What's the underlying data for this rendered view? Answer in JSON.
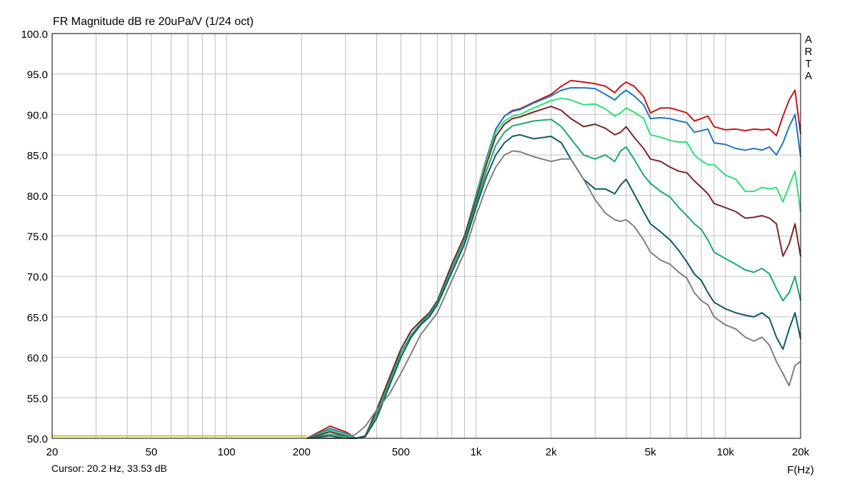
{
  "title": "FR Magnitude dB re 20uPa/V (1/24 oct)",
  "cursor_readout": "Cursor: 20.2 Hz, 33.53 dB",
  "watermark": [
    "A",
    "R",
    "T",
    "A"
  ],
  "colors": {
    "background": "#ffffff",
    "grid": "#c0c0c0",
    "frame": "#000000"
  },
  "chart_data": {
    "type": "line",
    "title": "FR Magnitude dB re 20uPa/V (1/24 oct)",
    "xlabel": "F(Hz)",
    "ylabel": "",
    "xscale": "log",
    "xlim": [
      20,
      20000
    ],
    "ylim": [
      50,
      100
    ],
    "grid": true,
    "x_ticks": [
      {
        "value": 20,
        "label": "20"
      },
      {
        "value": 50,
        "label": "50"
      },
      {
        "value": 100,
        "label": "100"
      },
      {
        "value": 200,
        "label": "200"
      },
      {
        "value": 500,
        "label": "500"
      },
      {
        "value": 1000,
        "label": "1k"
      },
      {
        "value": 2000,
        "label": "2k"
      },
      {
        "value": 5000,
        "label": "5k"
      },
      {
        "value": 10000,
        "label": "10k"
      },
      {
        "value": 20000,
        "label": "20k"
      }
    ],
    "y_ticks": [
      {
        "value": 100,
        "label": "100.0"
      },
      {
        "value": 95,
        "label": "95.0"
      },
      {
        "value": 90,
        "label": "90.0"
      },
      {
        "value": 85,
        "label": "85.0"
      },
      {
        "value": 80,
        "label": "80.0"
      },
      {
        "value": 75,
        "label": "75.0"
      },
      {
        "value": 70,
        "label": "70.0"
      },
      {
        "value": 65,
        "label": "65.0"
      },
      {
        "value": 60,
        "label": "60.0"
      },
      {
        "value": 55,
        "label": "55.0"
      },
      {
        "value": 50,
        "label": "50.0"
      }
    ],
    "series": [
      {
        "color": "#c01818",
        "x": [
          210,
          260,
          300,
          330,
          360,
          400,
          450,
          500,
          550,
          600,
          650,
          700,
          800,
          900,
          1000,
          1100,
          1200,
          1300,
          1400,
          1500,
          1700,
          2000,
          2200,
          2400,
          2700,
          3000,
          3300,
          3600,
          3800,
          4000,
          4300,
          4700,
          5000,
          5500,
          6000,
          6500,
          7000,
          7500,
          8000,
          8500,
          9000,
          10000,
          11000,
          12000,
          13000,
          14000,
          15000,
          16000,
          17000,
          18000,
          19000,
          20000
        ],
        "y": [
          50,
          51.5,
          50.8,
          50,
          50.3,
          53.5,
          57.5,
          61,
          63.3,
          64.5,
          65.5,
          67,
          71.5,
          75,
          80,
          84.5,
          88.2,
          89.8,
          90.5,
          90.7,
          91.5,
          92.5,
          93.5,
          94.2,
          94,
          93.8,
          93.5,
          92.7,
          93.5,
          94,
          93.5,
          92.2,
          90.2,
          90.8,
          90.8,
          90.5,
          90.2,
          89.2,
          89.5,
          89.8,
          88.5,
          88.1,
          88.2,
          88,
          88.2,
          88.1,
          88.2,
          87.4,
          89.8,
          91.8,
          93,
          87.6
        ]
      },
      {
        "color": "#1e78c4",
        "x": [
          210,
          260,
          300,
          330,
          360,
          400,
          450,
          500,
          550,
          600,
          650,
          700,
          800,
          900,
          1000,
          1100,
          1200,
          1300,
          1400,
          1500,
          1700,
          2000,
          2200,
          2400,
          2700,
          3000,
          3300,
          3600,
          3800,
          4000,
          4300,
          4700,
          5000,
          5500,
          6000,
          6500,
          7000,
          7500,
          8000,
          8500,
          9000,
          10000,
          11000,
          12000,
          13000,
          14000,
          15000,
          16000,
          17000,
          18000,
          19000,
          20000
        ],
        "y": [
          50,
          51.2,
          50.6,
          50,
          50.3,
          53.5,
          57.5,
          61,
          63.3,
          64.5,
          65.5,
          67,
          71.5,
          75,
          80,
          84.5,
          88.2,
          89.8,
          90.4,
          90.6,
          91.4,
          92.3,
          93,
          93.3,
          93.3,
          93.2,
          92.5,
          91.8,
          92.5,
          93,
          92.3,
          91.2,
          89.5,
          89.6,
          89.5,
          89.2,
          89,
          87.8,
          88,
          88.2,
          86.5,
          86.3,
          85.8,
          85.6,
          85.8,
          85.6,
          86,
          85,
          86.5,
          88.5,
          90,
          84.8
        ]
      },
      {
        "color": "#2ee078",
        "x": [
          210,
          260,
          300,
          330,
          360,
          400,
          450,
          500,
          550,
          600,
          650,
          700,
          800,
          900,
          1000,
          1100,
          1200,
          1300,
          1400,
          1500,
          1700,
          2000,
          2200,
          2400,
          2700,
          3000,
          3300,
          3600,
          3800,
          4000,
          4300,
          4700,
          5000,
          5500,
          6000,
          6500,
          7000,
          7500,
          8000,
          8500,
          9000,
          10000,
          11000,
          12000,
          13000,
          14000,
          15000,
          16000,
          17000,
          18000,
          19000,
          20000
        ],
        "y": [
          50,
          51,
          50.5,
          50,
          50.3,
          53.5,
          57.5,
          61,
          63.3,
          64.5,
          65.5,
          67,
          71.5,
          75,
          79.8,
          84.2,
          87.8,
          89.2,
          89.8,
          90,
          90.8,
          91.7,
          92,
          91.8,
          91.2,
          91.3,
          90.7,
          89.8,
          90.2,
          90.8,
          90.3,
          89.5,
          87.5,
          87.2,
          86.8,
          86.6,
          86.6,
          85,
          84.3,
          83.8,
          83.8,
          82.5,
          82,
          80.5,
          80.5,
          81,
          80.8,
          81,
          79.2,
          81.2,
          83,
          78
        ]
      },
      {
        "color": "#7a2828",
        "x": [
          210,
          260,
          300,
          330,
          360,
          400,
          450,
          500,
          550,
          600,
          650,
          700,
          800,
          900,
          1000,
          1100,
          1200,
          1300,
          1400,
          1500,
          1700,
          2000,
          2200,
          2400,
          2700,
          3000,
          3300,
          3600,
          3800,
          4000,
          4300,
          4700,
          5000,
          5500,
          6000,
          6500,
          7000,
          7500,
          8000,
          8500,
          9000,
          10000,
          11000,
          12000,
          13000,
          14000,
          15000,
          16000,
          17000,
          18000,
          19000,
          20000
        ],
        "y": [
          50,
          50.8,
          50.3,
          50,
          50.3,
          53.5,
          57.5,
          61,
          63.3,
          64.5,
          65.5,
          67,
          71.5,
          75,
          79.5,
          83.8,
          87.3,
          88.8,
          89.5,
          89.7,
          90.3,
          91,
          90.5,
          89.5,
          88.5,
          88.8,
          88.3,
          87.5,
          87.8,
          88.5,
          87.2,
          85.8,
          84.5,
          84.2,
          83.5,
          83,
          82.8,
          81.8,
          81,
          80.2,
          79,
          78.5,
          78,
          77.2,
          77.3,
          77.5,
          77.2,
          76.5,
          72.5,
          74,
          76.5,
          72.5
        ]
      },
      {
        "color": "#1ea86e",
        "x": [
          210,
          260,
          300,
          330,
          360,
          400,
          450,
          500,
          550,
          600,
          650,
          700,
          800,
          900,
          1000,
          1100,
          1200,
          1300,
          1400,
          1500,
          1700,
          2000,
          2200,
          2400,
          2700,
          3000,
          3300,
          3600,
          3800,
          4000,
          4300,
          4700,
          5000,
          5500,
          6000,
          6500,
          7000,
          7500,
          8000,
          8500,
          9000,
          10000,
          11000,
          12000,
          13000,
          14000,
          15000,
          16000,
          17000,
          18000,
          19000,
          20000
        ],
        "y": [
          50,
          50.5,
          50.2,
          50,
          50.2,
          53,
          57,
          60.5,
          62.8,
          64.2,
          65.3,
          66.8,
          71,
          74.5,
          79,
          83,
          86.2,
          87.8,
          88.6,
          88.8,
          89.2,
          89.4,
          88.5,
          87,
          85,
          84.5,
          85,
          84.2,
          85.5,
          86,
          84.5,
          82.5,
          81.5,
          80.5,
          79.8,
          78.5,
          77.5,
          76.5,
          75.8,
          74.5,
          73,
          72.2,
          71.5,
          70.8,
          70.5,
          71,
          70.3,
          68.5,
          67,
          68,
          70,
          67
        ]
      },
      {
        "color": "#0f5a64",
        "x": [
          210,
          260,
          300,
          330,
          360,
          400,
          450,
          500,
          550,
          600,
          650,
          700,
          800,
          900,
          1000,
          1100,
          1200,
          1300,
          1400,
          1500,
          1700,
          2000,
          2200,
          2400,
          2700,
          3000,
          3300,
          3600,
          3800,
          4000,
          4300,
          4700,
          5000,
          5500,
          6000,
          6500,
          7000,
          7500,
          8000,
          8500,
          9000,
          10000,
          11000,
          12000,
          13000,
          14000,
          15000,
          16000,
          17000,
          18000,
          19000,
          20000
        ],
        "y": [
          50,
          50.3,
          50,
          50,
          50.2,
          52.5,
          56.5,
          60,
          62.5,
          64,
          65,
          66.5,
          70.5,
          74,
          78.5,
          82.3,
          85,
          86.5,
          87.3,
          87.5,
          87,
          87.3,
          86.5,
          84.5,
          82,
          80.8,
          80.8,
          80.2,
          81.3,
          82,
          80.2,
          78,
          76.5,
          75.5,
          74.5,
          73.2,
          71.8,
          70.3,
          69.5,
          68,
          66.8,
          66,
          65.5,
          65.2,
          65,
          65.5,
          64.8,
          62.5,
          61,
          63.5,
          65.5,
          62.3
        ]
      },
      {
        "color": "#808080",
        "x": [
          210,
          260,
          300,
          330,
          360,
          400,
          450,
          500,
          550,
          600,
          650,
          700,
          800,
          900,
          1000,
          1100,
          1200,
          1300,
          1400,
          1500,
          1700,
          2000,
          2200,
          2400,
          2700,
          3000,
          3300,
          3600,
          3800,
          4000,
          4300,
          4700,
          5000,
          5500,
          6000,
          6500,
          7000,
          7500,
          8000,
          8500,
          9000,
          10000,
          11000,
          12000,
          13000,
          14000,
          15000,
          16000,
          17000,
          18000,
          19000,
          20000
        ],
        "y": [
          50,
          50,
          50,
          50.5,
          51.5,
          53.5,
          55.5,
          58,
          60.5,
          62.8,
          64.2,
          65.5,
          69.5,
          73,
          77.5,
          81,
          83.5,
          85,
          85.5,
          85.4,
          84.8,
          84.2,
          84.5,
          84.5,
          82,
          79.5,
          77.8,
          77,
          76.8,
          77,
          76.2,
          74.5,
          73,
          72,
          71.5,
          70.5,
          69.8,
          68,
          67,
          66.5,
          65,
          64,
          63.5,
          62.5,
          62,
          62.5,
          61.5,
          59.5,
          58,
          56.5,
          59,
          59.5
        ]
      },
      {
        "color": "#c8c832",
        "x": [
          20,
          210
        ],
        "y": [
          50.3,
          50.3
        ]
      }
    ]
  }
}
